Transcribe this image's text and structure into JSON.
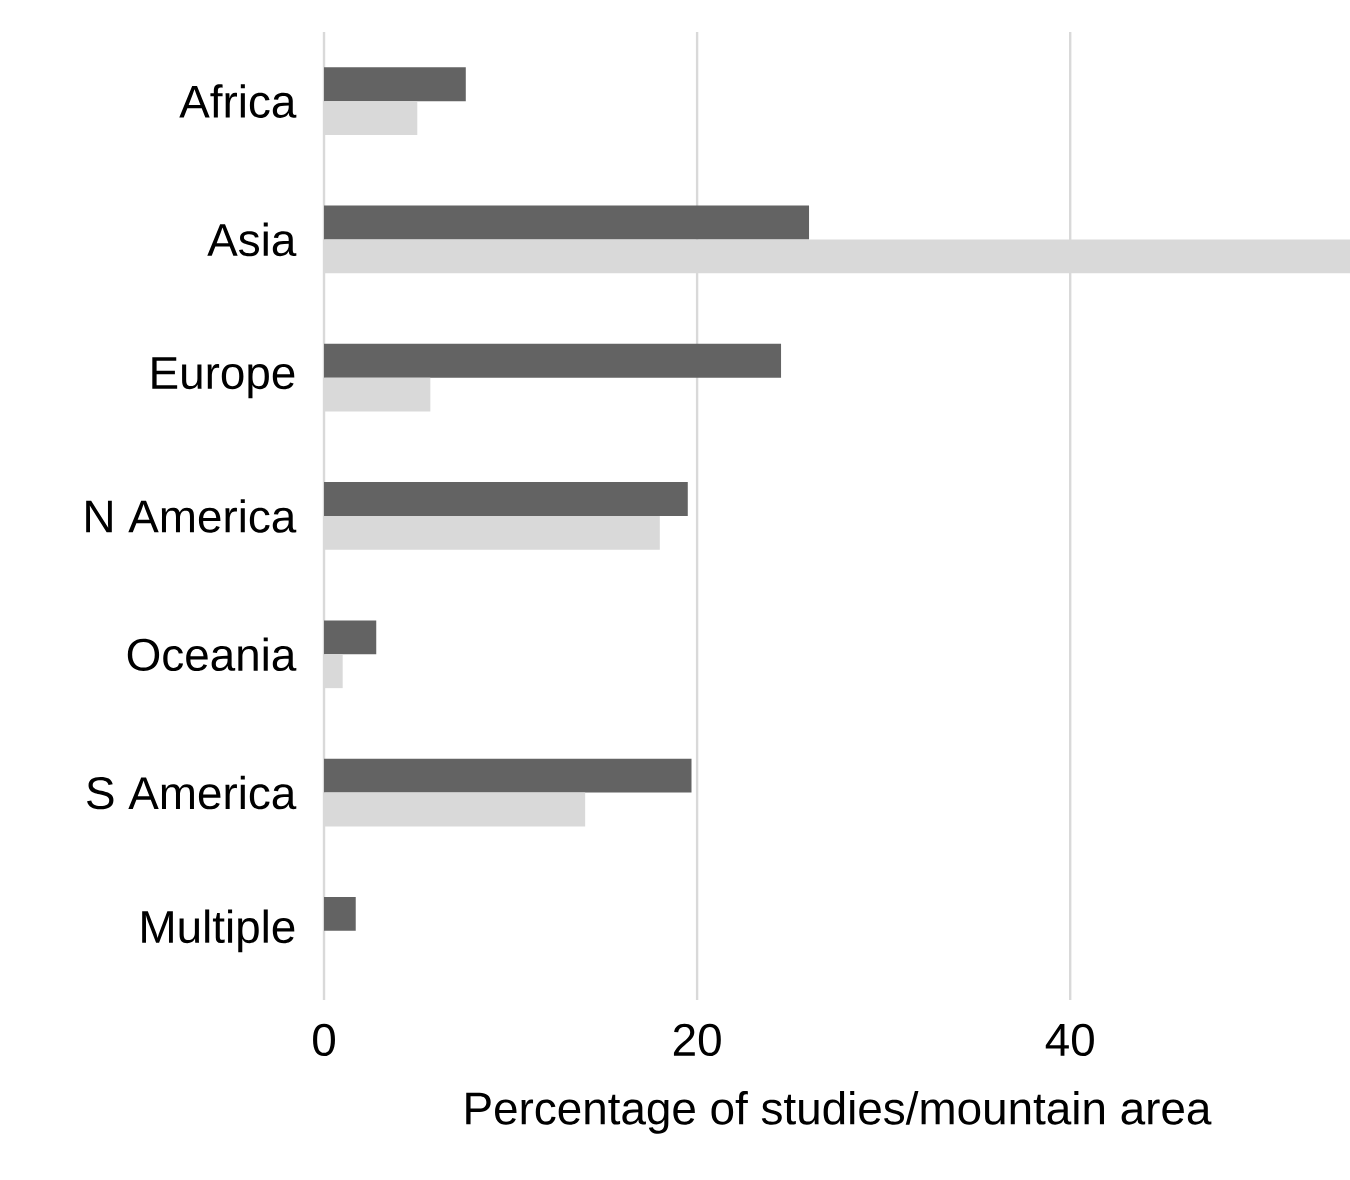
{
  "chart_data": {
    "type": "bar",
    "orientation": "horizontal",
    "xlabel": "Percentage of studies/mountain area",
    "categories": [
      "Africa",
      "Asia",
      "Europe",
      "N America",
      "Oceania",
      "S America",
      "Multiple"
    ],
    "series": [
      {
        "color": "#636363",
        "values": [
          7.6,
          26.0,
          24.5,
          19.5,
          2.8,
          19.7,
          1.7
        ]
      },
      {
        "color": "#d9d9d9",
        "values": [
          5.0,
          55.0,
          5.7,
          18.0,
          1.0,
          14.0,
          null
        ]
      }
    ],
    "xlim": [
      0,
      55
    ],
    "xticks": [
      0,
      20,
      40
    ],
    "grid": "x"
  }
}
